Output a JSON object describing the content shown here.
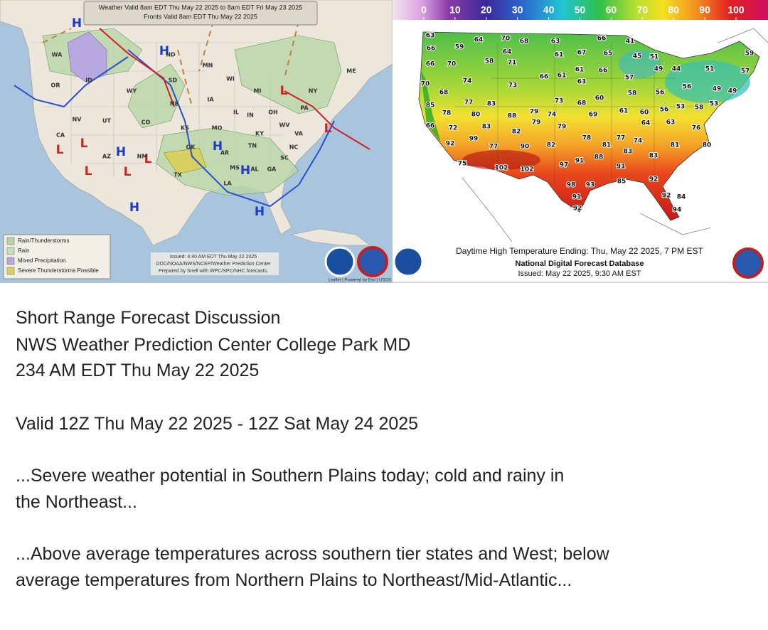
{
  "surface_map": {
    "header": [
      "Weather Valid 8am EDT Thu May 22 2025 to 8am EDT Fri May 23 2025",
      "Fronts Valid 8am EDT Thu May 22 2025"
    ],
    "pressure_centers": [
      "H",
      "H",
      "L",
      "L",
      "L",
      "L",
      "H",
      "L",
      "L",
      "L",
      "H",
      "H",
      "H",
      "H"
    ],
    "state_labels": [
      "WA",
      "OR",
      "ID",
      "NV",
      "CA",
      "UT",
      "AZ",
      "NM",
      "CO",
      "WY",
      "ND",
      "SD",
      "NE",
      "KS",
      "OK",
      "TX",
      "MN",
      "IA",
      "MO",
      "AR",
      "LA",
      "MS",
      "AL",
      "GA",
      "SC",
      "NC",
      "TN",
      "KY",
      "VA",
      "WV",
      "OH",
      "IN",
      "IL",
      "WI",
      "MI",
      "PA",
      "NY",
      "ME"
    ],
    "legend": [
      "Rain/Thunderstorms",
      "Rain",
      "Mixed Precipitation",
      "Severe Thunderstorms Possible"
    ],
    "issued": [
      "Issued: 4:40 AM EDT Thu May 22 2025",
      "DOC/NOAA/NWS/NCEP/Weather Prediction Center",
      "Prepared by Snell with WPC/SPC/NHC forecasts."
    ],
    "attribution": "Leaflet | Powered by Esri | USGS"
  },
  "temperature_map": {
    "scale_ticks": [
      0,
      10,
      20,
      30,
      40,
      50,
      60,
      70,
      80,
      90,
      100
    ],
    "labels": [
      63,
      66,
      59,
      64,
      70,
      68,
      63,
      66,
      41,
      64,
      61,
      67,
      65,
      45,
      51,
      59,
      66,
      70,
      58,
      71,
      61,
      66,
      49,
      44,
      51,
      57,
      70,
      74,
      73,
      66,
      61,
      63,
      57,
      56,
      49,
      49,
      68,
      58,
      56,
      85,
      77,
      83,
      73,
      68,
      60,
      61,
      60,
      56,
      53,
      58,
      53,
      78,
      80,
      88,
      79,
      74,
      69,
      79,
      79,
      64,
      63,
      66,
      72,
      83,
      82,
      76,
      99,
      92,
      77,
      90,
      82,
      78,
      81,
      77,
      74,
      81,
      80,
      83,
      83,
      75,
      102,
      102,
      97,
      91,
      88,
      91,
      92,
      98,
      93,
      85,
      92,
      84,
      91,
      94,
      92
    ],
    "caption": "Daytime High Temperature Ending: Thu, May 22 2025, 7 PM EST",
    "source": "National Digital Forecast Database",
    "issued": "Issued: May 22 2025, 9:30 AM EST"
  },
  "discussion": {
    "title_lines": [
      "Short Range Forecast Discussion",
      "NWS Weather Prediction Center College Park MD",
      "234 AM EDT Thu May 22 2025"
    ],
    "valid": "Valid 12Z Thu May 22 2025 - 12Z Sat May 24 2025",
    "headlines": [
      [
        "...Severe weather potential in Southern Plains today; cold and rainy in",
        "the Northeast..."
      ],
      [
        "...Above average temperatures across southern tier states and West; below",
        "average temperatures from Northern Plains to Northeast/Mid-Atlantic..."
      ]
    ]
  }
}
